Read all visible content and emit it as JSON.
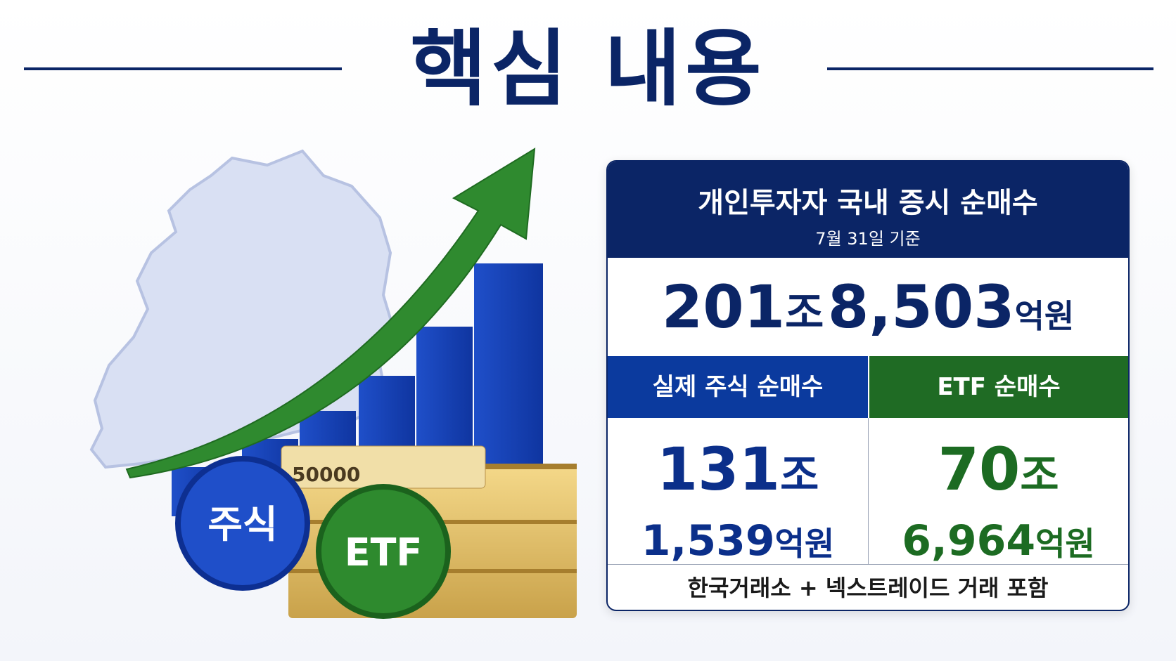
{
  "title": "핵심 내용",
  "illustration": {
    "banknote": "50000",
    "coin_stock": "주식",
    "coin_etf": "ETF"
  },
  "card": {
    "title": "개인투자자 국내 증시 순매수",
    "subtitle": "7월 31일 기준",
    "total": {
      "trillion": "201",
      "trillion_unit": "조",
      "rest": "8,503",
      "rest_unit": "억원"
    },
    "stock": {
      "label": "실제 주식 순매수",
      "trillion": "131",
      "trillion_unit": "조",
      "rest": "1,539",
      "rest_unit": "억원"
    },
    "etf": {
      "label": "ETF 순매수",
      "trillion": "70",
      "trillion_unit": "조",
      "rest": "6,964",
      "rest_unit": "억원"
    },
    "footnote": "한국거래소 + 넥스트레이드 거래 포함"
  }
}
